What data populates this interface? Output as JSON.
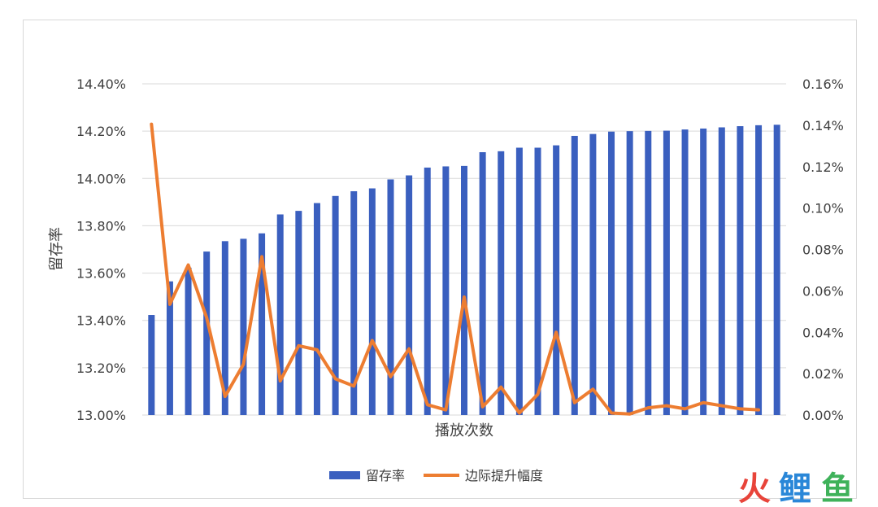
{
  "chart_data": {
    "type": "bar",
    "xlabel": "播放次数",
    "ylabel": "留存率",
    "ylim": [
      13.0,
      14.4
    ],
    "y2lim": [
      0.0,
      0.16
    ],
    "yticks": [
      "13.00%",
      "13.20%",
      "13.40%",
      "13.60%",
      "13.80%",
      "14.00%",
      "14.20%",
      "14.40%"
    ],
    "y2ticks": [
      "0.00%",
      "0.02%",
      "0.04%",
      "0.06%",
      "0.08%",
      "0.10%",
      "0.12%",
      "0.14%",
      "0.16%"
    ],
    "grid": true,
    "legend_position": "bottom",
    "series": [
      {
        "name": "留存率",
        "type": "bar",
        "axis": "left",
        "color": "#3a5fbf",
        "values": [
          13.423,
          13.565,
          13.623,
          13.691,
          13.735,
          13.745,
          13.768,
          13.848,
          13.863,
          13.896,
          13.926,
          13.946,
          13.958,
          13.996,
          14.013,
          14.046,
          14.051,
          14.053,
          14.111,
          14.115,
          14.13,
          14.13,
          14.14,
          14.18,
          14.188,
          14.198,
          14.2,
          14.201,
          14.202,
          14.207,
          14.211,
          14.216,
          14.221,
          14.225,
          14.227
        ]
      },
      {
        "name": "边际提升幅度",
        "type": "line",
        "axis": "right",
        "color": "#ed7d31",
        "values": [
          0.1405,
          0.0535,
          0.0725,
          0.047,
          0.009,
          0.0245,
          0.0765,
          0.0165,
          0.0335,
          0.0315,
          0.0175,
          0.014,
          0.036,
          0.0185,
          0.032,
          0.005,
          0.0025,
          0.057,
          0.004,
          0.0135,
          0.001,
          0.01,
          0.04,
          0.006,
          0.0125,
          0.001,
          0.0005,
          0.0035,
          0.0045,
          0.003,
          0.006,
          0.0045,
          0.003,
          0.0025
        ]
      }
    ]
  },
  "legend": {
    "bar_label": "留存率",
    "line_label": "边际提升幅度"
  },
  "watermark": {
    "char1": "火",
    "char2": "鲤",
    "char3": "鱼"
  }
}
